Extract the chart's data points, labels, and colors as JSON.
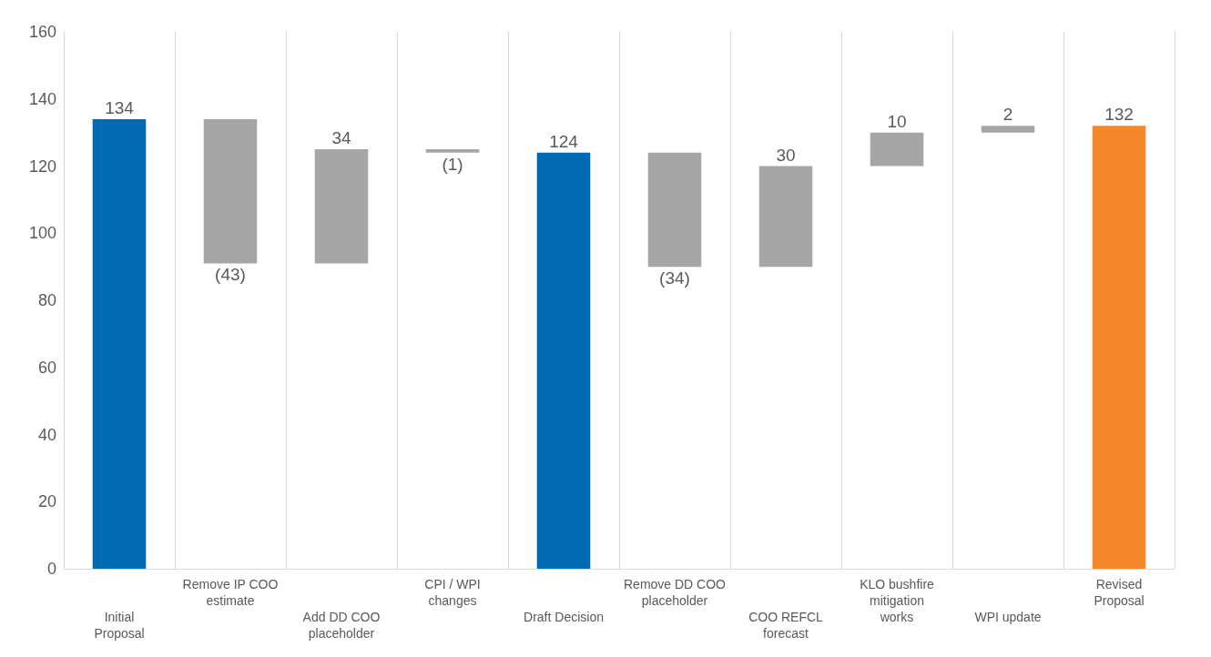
{
  "chart_data": {
    "type": "bar",
    "categories": [
      "Initial Proposal",
      "Remove IP COO estimate",
      "Add DD COO placeholder",
      "CPI / WPI changes",
      "Draft Decision",
      "Remove DD COO placeholder",
      "COO REFCL forecast",
      "KLO bushfire mitigation works",
      "WPI update",
      "Revised Proposal"
    ],
    "values": [
      134,
      -43,
      34,
      -1,
      124,
      -34,
      30,
      10,
      2,
      132
    ],
    "base": [
      0,
      134,
      91,
      125,
      0,
      124,
      90,
      120,
      130,
      0
    ],
    "colors": [
      "#0069b4",
      "#a6a6a6",
      "#a6a6a6",
      "#a6a6a6",
      "#0069b4",
      "#a6a6a6",
      "#a6a6a6",
      "#a6a6a6",
      "#a6a6a6",
      "#f5862a"
    ],
    "value_labels": [
      "134",
      "(43)",
      "34",
      "(1)",
      "124",
      "(34)",
      "30",
      "10",
      "2",
      "132"
    ],
    "ylim": [
      0,
      160
    ],
    "yticks": [
      0,
      20,
      40,
      60,
      80,
      100,
      120,
      140,
      160
    ],
    "grid": "x"
  }
}
